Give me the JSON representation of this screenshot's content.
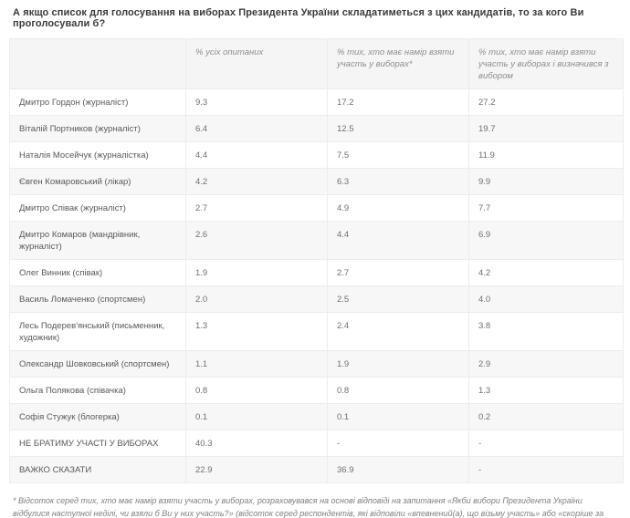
{
  "colors": {
    "page_background": "#ffffff",
    "header_background": "#f5f5f5",
    "row_stripe": "#f7f7f7",
    "border": "#ececec",
    "title_text": "#3a3a3a",
    "header_text": "#8e8e8e",
    "cell_text": "#6e6f71"
  },
  "title": "А якщо список для голосування на виборах Президента України складатиметься з цих кандидатів, то за кого Ви проголосували б?",
  "table": {
    "columns": [
      "",
      "% усіх опитаних",
      "% тих, хто має намір взяти участь у виборах*",
      "% тих, хто має намір взяти участь у виборах і визначився з вибором"
    ],
    "rows": [
      {
        "name": "Дмитро Гордон (журналіст)",
        "values": [
          "9.3",
          "17.2",
          "27.2"
        ]
      },
      {
        "name": "Віталій Портников (журналіст)",
        "values": [
          "6.4",
          "12.5",
          "19.7"
        ]
      },
      {
        "name": "Наталія Мосейчук (журналістка)",
        "values": [
          "4.4",
          "7.5",
          "11.9"
        ]
      },
      {
        "name": "Євген Комаровський (лікар)",
        "values": [
          "4.2",
          "6.3",
          "9.9"
        ]
      },
      {
        "name": "Дмитро Співак (журналіст)",
        "values": [
          "2.7",
          "4.9",
          "7.7"
        ]
      },
      {
        "name": "Дмитро Комаров (мандрівник, журналіст)",
        "values": [
          "2.6",
          "4.4",
          "6.9"
        ]
      },
      {
        "name": "Олег Винник (співак)",
        "values": [
          "1.9",
          "2.7",
          "4.2"
        ]
      },
      {
        "name": "Василь Ломаченко (спортсмен)",
        "values": [
          "2.0",
          "2.5",
          "4.0"
        ]
      },
      {
        "name": "Лесь Подерев'янський (письменник, художник)",
        "values": [
          "1.3",
          "2.4",
          "3.8"
        ]
      },
      {
        "name": "Олександр Шовковський (спортсмен)",
        "values": [
          "1.1",
          "1.9",
          "2.9"
        ]
      },
      {
        "name": "Ольга Полякова (співачка)",
        "values": [
          "0.8",
          "0.8",
          "1.3"
        ]
      },
      {
        "name": "Софія Стужук (блогерка)",
        "values": [
          "0.1",
          "0.1",
          "0.2"
        ]
      },
      {
        "name": "НЕ БРАТИМУ УЧАСТІ У ВИБОРАХ",
        "values": [
          "40.3",
          "-",
          "-"
        ]
      },
      {
        "name": "ВАЖКО СКАЗАТИ",
        "values": [
          "22.9",
          "36.9",
          "-"
        ]
      }
    ]
  },
  "footnote": "* Відсоток серед тих, хто має намір взяти участь у виборах, розраховувався на основі відповіді на запитання «Якби вибори  Президента України відбулися наступної  неділі, чи взяли б Ви у них участь?» (відсоток серед респондентів, які відповіли «впевнений(а), що візьму участь» або «скоріше за все, візьму участь» у виборах)."
}
